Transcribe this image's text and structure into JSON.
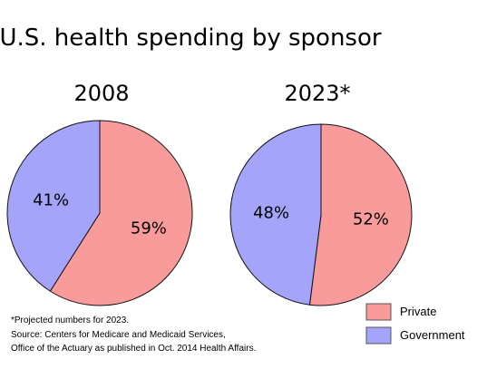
{
  "chart_data": [
    {
      "type": "pie",
      "title": "2008",
      "categories": [
        "Private",
        "Government"
      ],
      "values": [
        59,
        41
      ],
      "labels": [
        "59%",
        "41%"
      ],
      "colors": [
        "#fa9b9b",
        "#a4a4fb"
      ]
    },
    {
      "type": "pie",
      "title": "2023*",
      "categories": [
        "Private",
        "Government"
      ],
      "values": [
        52,
        48
      ],
      "labels": [
        "52%",
        "48%"
      ],
      "colors": [
        "#fa9b9b",
        "#a4a4fb"
      ]
    }
  ],
  "figure": {
    "title": "U.S. health spending by sponsor",
    "legend_position": "bottom-right",
    "legend": [
      {
        "label": "Private",
        "color": "#fa9b9b"
      },
      {
        "label": "Government",
        "color": "#a4a4fb"
      }
    ],
    "notes": [
      "*Projected numbers for 2023.",
      "Source: Centers for Medicare and Medicaid Services,",
      "Office of the Actuary as published in Oct. 2014 Health Affairs."
    ]
  }
}
